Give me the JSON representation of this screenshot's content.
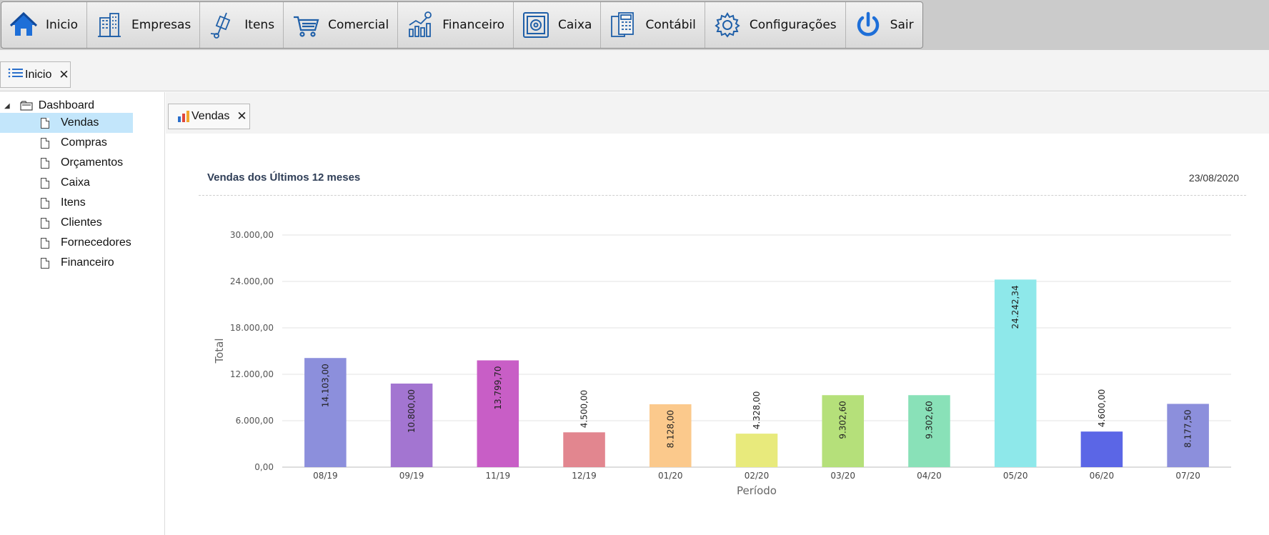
{
  "menu": [
    {
      "label": "Inicio",
      "icon": "home-icon"
    },
    {
      "label": "Empresas",
      "icon": "buildings-icon"
    },
    {
      "label": "Itens",
      "icon": "hand-truck-icon"
    },
    {
      "label": "Comercial",
      "icon": "shopping-cart-icon"
    },
    {
      "label": "Financeiro",
      "icon": "finance-chart-icon"
    },
    {
      "label": "Caixa",
      "icon": "safe-icon"
    },
    {
      "label": "Contábil",
      "icon": "calculator-icon"
    },
    {
      "label": "Configurações",
      "icon": "gear-icon"
    },
    {
      "label": "Sair",
      "icon": "power-icon"
    }
  ],
  "tabs": {
    "main": {
      "label": "Inicio",
      "icon": "list-icon",
      "close": "✕"
    },
    "content": {
      "label": "Vendas",
      "icon": "bar-chart-icon",
      "close": "✕"
    }
  },
  "tree": {
    "root": "Dashboard",
    "items": [
      "Vendas",
      "Compras",
      "Orçamentos",
      "Caixa",
      "Itens",
      "Clientes",
      "Fornecedores",
      "Financeiro"
    ],
    "selected": "Vendas"
  },
  "chart_header": {
    "title": "Vendas dos Últimos 12 meses",
    "date": "23/08/2020"
  },
  "colors": {
    "accent": "#1f6fd6",
    "selection": "#c3e6fb"
  },
  "chart_data": {
    "type": "bar",
    "xlabel": "Período",
    "ylabel": "Total",
    "ylim": [
      0,
      30000
    ],
    "yticks": [
      "0,00",
      "6.000,00",
      "12.000,00",
      "18.000,00",
      "24.000,00",
      "30.000,00"
    ],
    "categories": [
      "08/19",
      "09/19",
      "11/19",
      "12/19",
      "01/20",
      "02/20",
      "03/20",
      "04/20",
      "05/20",
      "06/20",
      "07/20"
    ],
    "values": [
      14103.0,
      10800.0,
      13799.7,
      4500.0,
      8128.0,
      4328.0,
      9302.6,
      9302.6,
      24242.34,
      4600.0,
      8177.5
    ],
    "labels": [
      "14.103,00",
      "10.800,00",
      "13.799,70",
      "4.500,00",
      "8.128,00",
      "4.328,00",
      "9.302,60",
      "9.302,60",
      "24.242,34",
      "4.600,00",
      "8.177,50"
    ],
    "colors": [
      "#8c8fdc",
      "#a375d1",
      "#c85ec6",
      "#e2868f",
      "#fbc98c",
      "#e8ea7c",
      "#b5e07a",
      "#89e1b8",
      "#8ee8ea",
      "#5b66e6",
      "#8c8fdc"
    ],
    "grid": true
  }
}
